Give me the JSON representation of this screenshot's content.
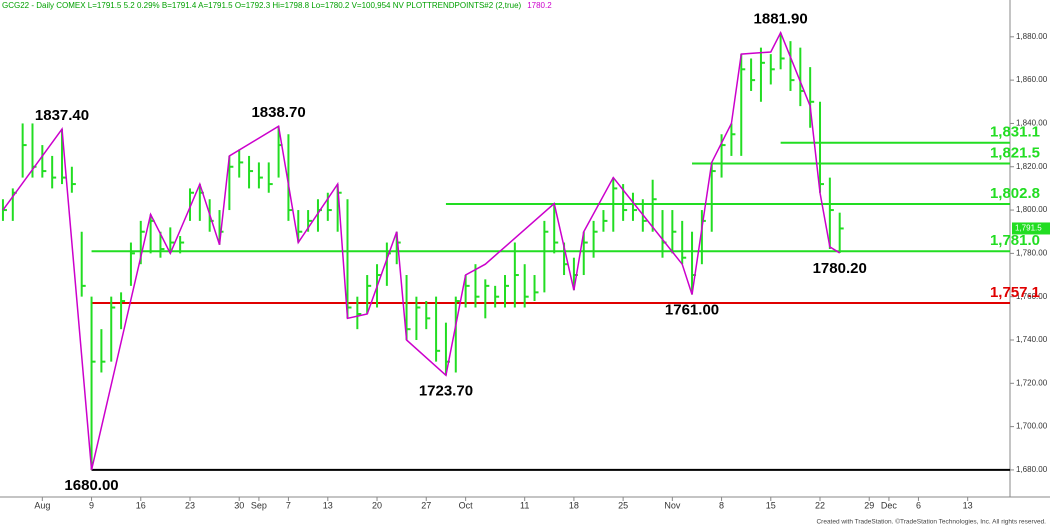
{
  "chart_data": {
    "type": "ohlc",
    "header": "GCG22 - Daily  COMEX  L=1791.5  5.2  0.29%  B=1791.4  A=1791.5  O=1792.3  Hi=1798.8  Lo=1780.2  V=100,954  NV  PLOTTRENDPOINTS#2 (2,true)",
    "header_value": "1780.2",
    "footer": "Created with TradeStation. ©TradeStation Technologies, Inc. All rights reserved.",
    "color": "#22dd22",
    "zigzag_color": "#cc00cc",
    "high": [
      1805,
      1810,
      1840,
      1840,
      1830,
      1825,
      1837.4,
      1820,
      1790,
      1760,
      1745,
      1760,
      1762,
      1785,
      1795,
      1798,
      1790,
      1792,
      1788,
      1810,
      1812,
      1805,
      1800,
      1825,
      1828,
      1825,
      1822,
      1822,
      1838.7,
      1835,
      1800,
      1800,
      1805,
      1808,
      1812,
      1805,
      1760,
      1770,
      1775,
      1785,
      1790,
      1770,
      1760,
      1758,
      1760,
      1748,
      1760,
      1770,
      1775,
      1768,
      1765,
      1770,
      1785,
      1775,
      1770,
      1795,
      1803,
      1785,
      1778,
      1790,
      1795,
      1800,
      1815,
      1812,
      1808,
      1805,
      1814,
      1800,
      1800,
      1795,
      1790,
      1800,
      1822,
      1835,
      1840,
      1872,
      1870,
      1875,
      1872,
      1881.9,
      1878,
      1875,
      1866,
      1850,
      1815,
      1798.8
    ],
    "low": [
      1795,
      1795,
      1815,
      1815,
      1815,
      1810,
      1812,
      1808,
      1760,
      1680,
      1725,
      1730,
      1745,
      1765,
      1775,
      1780,
      1778,
      1780,
      1780,
      1795,
      1795,
      1790,
      1784,
      1800,
      1815,
      1810,
      1810,
      1808,
      1815,
      1795,
      1785,
      1790,
      1790,
      1795,
      1790,
      1750,
      1745,
      1752,
      1755,
      1765,
      1775,
      1740,
      1740,
      1745,
      1730,
      1723.7,
      1725,
      1755,
      1755,
      1750,
      1755,
      1755,
      1755,
      1755,
      1758,
      1762,
      1780,
      1770,
      1763,
      1770,
      1778,
      1790,
      1790,
      1795,
      1795,
      1790,
      1790,
      1778,
      1780,
      1775,
      1761,
      1775,
      1790,
      1815,
      1825,
      1825,
      1855,
      1850,
      1858,
      1865,
      1855,
      1848,
      1838,
      1808,
      1782,
      1780.2
    ],
    "close": [
      1800,
      1808,
      1830,
      1820,
      1818,
      1815,
      1815,
      1812,
      1765,
      1730,
      1730,
      1755,
      1758,
      1780,
      1790,
      1795,
      1782,
      1785,
      1785,
      1808,
      1808,
      1795,
      1790,
      1820,
      1822,
      1818,
      1815,
      1812,
      1830,
      1800,
      1790,
      1795,
      1800,
      1800,
      1808,
      1755,
      1752,
      1765,
      1770,
      1780,
      1785,
      1745,
      1755,
      1750,
      1735,
      1730,
      1758,
      1765,
      1760,
      1765,
      1760,
      1765,
      1770,
      1760,
      1762,
      1790,
      1785,
      1775,
      1770,
      1785,
      1790,
      1795,
      1810,
      1800,
      1800,
      1795,
      1805,
      1785,
      1790,
      1778,
      1770,
      1795,
      1818,
      1830,
      1835,
      1865,
      1860,
      1868,
      1865,
      1870,
      1860,
      1855,
      1850,
      1812,
      1800,
      1791.5
    ],
    "zigzag": {
      "x": [
        0,
        6,
        9,
        15,
        17,
        20,
        22,
        23,
        28,
        30,
        34,
        35,
        37,
        40,
        41,
        45,
        47,
        49,
        56,
        58,
        59,
        62,
        69,
        70,
        72,
        74,
        75,
        78,
        79,
        82,
        83,
        84,
        85
      ],
      "values": [
        1800,
        1837.4,
        1680,
        1798,
        1780,
        1812,
        1784,
        1825,
        1838.7,
        1785,
        1812,
        1750,
        1752,
        1790,
        1740,
        1723.7,
        1770,
        1775,
        1803,
        1763,
        1790,
        1815,
        1775,
        1761,
        1822,
        1840,
        1872,
        1873,
        1881.9,
        1848,
        1808,
        1783,
        1780.2
      ]
    },
    "pivots": [
      {
        "x": 6,
        "value": 1837.4,
        "label": "1837.40"
      },
      {
        "x": 9,
        "value": 1680,
        "label": "1680.00"
      },
      {
        "x": 28,
        "value": 1838.7,
        "label": "1838.70"
      },
      {
        "x": 45,
        "value": 1723.7,
        "label": "1723.70"
      },
      {
        "x": 70,
        "value": 1761,
        "label": "1761.00"
      },
      {
        "x": 79,
        "value": 1881.9,
        "label": "1881.90"
      },
      {
        "x": 85,
        "value": 1780.2,
        "label": "1780.20"
      }
    ],
    "levels": [
      {
        "value": 1831.1,
        "label": "1,831.1",
        "color": "#22dd22",
        "start": 79
      },
      {
        "value": 1821.5,
        "label": "1,821.5",
        "color": "#22dd22",
        "start": 70
      },
      {
        "value": 1802.8,
        "label": "1,802.8",
        "color": "#22dd22",
        "start": 45
      },
      {
        "value": 1781.0,
        "label": "1,781.0",
        "color": "#22dd22",
        "start": 9
      },
      {
        "value": 1757.1,
        "label": "1,757.1",
        "color": "#e00000",
        "start": 9
      },
      {
        "value": 1680,
        "color": "#000000",
        "start": 9
      }
    ],
    "last_price": {
      "value": 1791.5,
      "label": "1,791.5"
    },
    "xlim": [
      -0.3,
      102.3
    ],
    "ylim": [
      1667.5,
      1897
    ],
    "yticks": [
      {
        "value": 1680,
        "label": "1,680.00"
      },
      {
        "value": 1700,
        "label": "1,700.00"
      },
      {
        "value": 1720,
        "label": "1,720.00"
      },
      {
        "value": 1740,
        "label": "1,740.00"
      },
      {
        "value": 1760,
        "label": "1,760.00"
      },
      {
        "value": 1780,
        "label": "1,780.00"
      },
      {
        "value": 1800,
        "label": "1,800.00"
      },
      {
        "value": 1820,
        "label": "1,820.00"
      },
      {
        "value": 1840,
        "label": "1,840.00"
      },
      {
        "value": 1860,
        "label": "1,860.00"
      },
      {
        "value": 1880,
        "label": "1,880.00"
      }
    ],
    "xticks": [
      {
        "value": 4,
        "label": "Aug"
      },
      {
        "value": 9,
        "label": "9"
      },
      {
        "value": 14,
        "label": "16"
      },
      {
        "value": 19,
        "label": "23"
      },
      {
        "value": 24,
        "label": "30"
      },
      {
        "value": 26,
        "label": "Sep"
      },
      {
        "value": 29,
        "label": "7"
      },
      {
        "value": 33,
        "label": "13"
      },
      {
        "value": 38,
        "label": "20"
      },
      {
        "value": 43,
        "label": "27"
      },
      {
        "value": 47,
        "label": "Oct"
      },
      {
        "value": 53,
        "label": "11"
      },
      {
        "value": 58,
        "label": "18"
      },
      {
        "value": 63,
        "label": "25"
      },
      {
        "value": 68,
        "label": "Nov"
      },
      {
        "value": 73,
        "label": "8"
      },
      {
        "value": 78,
        "label": "15"
      },
      {
        "value": 83,
        "label": "22"
      },
      {
        "value": 88,
        "label": "29"
      },
      {
        "value": 90,
        "label": "Dec"
      },
      {
        "value": 93,
        "label": "6"
      },
      {
        "value": 98,
        "label": "13"
      }
    ]
  }
}
